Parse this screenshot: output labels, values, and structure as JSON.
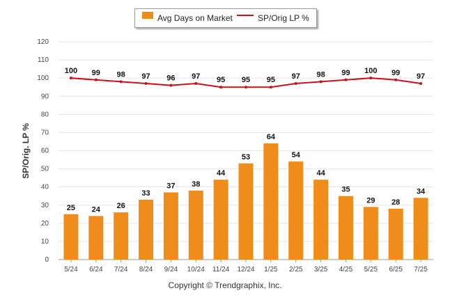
{
  "legend": {
    "bar_label": "Avg Days on Market",
    "line_label": "SP/Orig LP %"
  },
  "y_axis_title": "SP/Orig. LP %",
  "credit": "Copyright © Trendgraphix, Inc.",
  "colors": {
    "bar": "#ef8c1a",
    "line": "#c8101b",
    "grid": "#e5e5e5",
    "text": "#333333"
  },
  "chart_data": {
    "type": "bar",
    "categories": [
      "5/24",
      "6/24",
      "7/24",
      "8/24",
      "9/24",
      "10/24",
      "11/24",
      "12/24",
      "1/25",
      "2/25",
      "3/25",
      "4/25",
      "5/25",
      "6/25",
      "7/25"
    ],
    "ylim": [
      0,
      120
    ],
    "yticks": [
      0,
      10,
      20,
      30,
      40,
      50,
      60,
      70,
      80,
      90,
      100,
      110,
      120
    ],
    "ylabel": "SP/Orig. LP %",
    "grid": true,
    "legend_position": "top",
    "series": [
      {
        "name": "Avg Days on Market",
        "type": "bar",
        "values": [
          25,
          24,
          26,
          33,
          37,
          38,
          44,
          53,
          64,
          54,
          44,
          35,
          29,
          28,
          34
        ]
      },
      {
        "name": "SP/Orig LP %",
        "type": "line",
        "values": [
          100,
          99,
          98,
          97,
          96,
          97,
          95,
          95,
          95,
          97,
          98,
          99,
          100,
          99,
          97
        ]
      }
    ]
  }
}
